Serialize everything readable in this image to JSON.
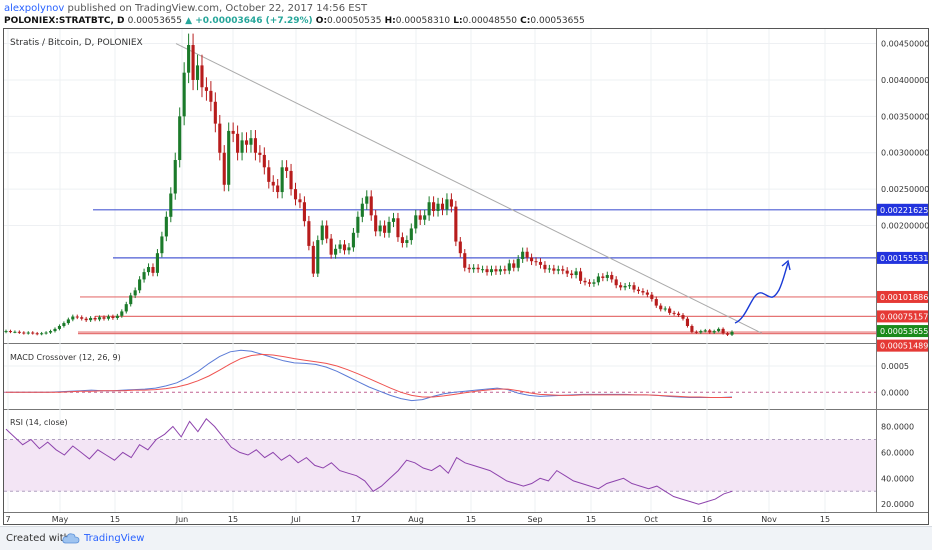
{
  "header": {
    "author": "alexpolynov",
    "published": "published on TradingView.com, October 22, 2017 14:56 EST",
    "symbol": "POLONIEX:STRATBTC, D",
    "last": "0.00053655",
    "change": "▲ +0.00003646 (+7.29%)",
    "o_label": "O:",
    "o": "0.00050535",
    "h_label": "H:",
    "h": "0.00058310",
    "l_label": "L:",
    "l": "0.00048550",
    "c_label": "C:",
    "c": "0.00053655"
  },
  "footer": {
    "created": "Created with",
    "brand": "TradingView"
  },
  "colors": {
    "up": "#26a69a",
    "down": "#ef5350",
    "candle_up": "#1b7a2a",
    "candle_down": "#b71c1c",
    "blue_level": "#4c5bd4",
    "red_level": "#e57373",
    "macd": "#5b7bd6",
    "signal": "#ef5350",
    "rsi": "#8e44ad",
    "rsi_band": "#f3e5f5",
    "trend": "#aaaaaa",
    "projection": "#1a3bd6"
  },
  "chart_data": [
    {
      "type": "candlestick",
      "title": "Stratis / Bitcoin, D, POLONIEX",
      "x_ticks": [
        "7",
        "May",
        "15",
        "Jun",
        "15",
        "Jul",
        "17",
        "Aug",
        "15",
        "Sep",
        "15",
        "Oct",
        "16",
        "Nov",
        "15"
      ],
      "y_ticks": [
        "0.00450000",
        "0.00400000",
        "0.00350000",
        "0.00300000",
        "0.00250000",
        "0.00200000"
      ],
      "ylim": [
        0.0004,
        0.0047
      ],
      "close": [
        0.00055,
        0.00054,
        0.00054,
        0.00053,
        0.00052,
        0.00053,
        0.00052,
        0.00051,
        0.00052,
        0.00053,
        0.00055,
        0.00058,
        0.00062,
        0.00066,
        0.00071,
        0.00075,
        0.00074,
        0.00072,
        0.0007,
        0.00073,
        0.00071,
        0.00074,
        0.00072,
        0.00075,
        0.00073,
        0.00076,
        0.00082,
        0.00092,
        0.00104,
        0.00111,
        0.00126,
        0.00136,
        0.00143,
        0.00135,
        0.00162,
        0.00185,
        0.00212,
        0.00244,
        0.0029,
        0.0035,
        0.0041,
        0.00448,
        0.004,
        0.0042,
        0.0039,
        0.00385,
        0.0037,
        0.0034,
        0.003,
        0.00256,
        0.0033,
        0.00326,
        0.003,
        0.00317,
        0.00311,
        0.0032,
        0.003,
        0.00297,
        0.0028,
        0.0026,
        0.00255,
        0.00246,
        0.0028,
        0.00275,
        0.0025,
        0.00236,
        0.00232,
        0.00206,
        0.00172,
        0.00134,
        0.0018,
        0.002,
        0.00182,
        0.0016,
        0.00168,
        0.00174,
        0.00166,
        0.0017,
        0.0019,
        0.00212,
        0.0023,
        0.0024,
        0.00214,
        0.00192,
        0.002,
        0.0019,
        0.00205,
        0.0021,
        0.00184,
        0.00176,
        0.0018,
        0.00196,
        0.00214,
        0.00208,
        0.00214,
        0.00232,
        0.0022,
        0.0023,
        0.00222,
        0.00236,
        0.00226,
        0.00178,
        0.00162,
        0.00142,
        0.0014,
        0.00142,
        0.0014,
        0.0014,
        0.00136,
        0.0014,
        0.00137,
        0.0014,
        0.00138,
        0.00148,
        0.00142,
        0.00154,
        0.00164,
        0.00156,
        0.00151,
        0.0015,
        0.00146,
        0.0014,
        0.00141,
        0.00138,
        0.0014,
        0.00138,
        0.00134,
        0.00132,
        0.00137,
        0.00124,
        0.00122,
        0.0012,
        0.00122,
        0.0013,
        0.00128,
        0.00132,
        0.00126,
        0.00118,
        0.00115,
        0.00117,
        0.00118,
        0.00112,
        0.0011,
        0.00108,
        0.00105,
        0.00099,
        0.0009,
        0.00085,
        0.00086,
        0.0008,
        0.00079,
        0.00077,
        0.00072,
        0.00062,
        0.00054,
        0.00053,
        0.00055,
        0.00056,
        0.00053,
        0.00055,
        0.00058,
        0.00052,
        0.0005,
        0.00054
      ],
      "levels": [
        {
          "value": 0.00221625,
          "label": "0.00221625",
          "color": "blue"
        },
        {
          "value": 0.00155531,
          "label": "0.00155531",
          "color": "blue"
        },
        {
          "value": 0.00101886,
          "label": "0.00101886",
          "color": "red"
        },
        {
          "value": 0.00075157,
          "label": "0.00075157",
          "color": "red"
        },
        {
          "value": 0.00053655,
          "label": "0.00053655",
          "color": "green"
        },
        {
          "value": 0.00051489,
          "label": "0.00051489",
          "color": "red"
        }
      ]
    },
    {
      "type": "line",
      "title": "MACD Crossover (12, 26, 9)",
      "y_ticks": [
        "0.0005",
        "0.0000"
      ],
      "ylim": [
        -0.0003,
        0.0009
      ],
      "series": [
        {
          "values": [
            0,
            0,
            0,
            0,
            0,
            1e-05,
            2e-05,
            3e-05,
            4e-05,
            3e-05,
            3e-05,
            4e-05,
            5e-05,
            6e-05,
            8e-05,
            0.00012,
            0.00018,
            0.00028,
            0.0004,
            0.00055,
            0.00068,
            0.00077,
            0.0008,
            0.00078,
            0.00072,
            0.00066,
            0.0006,
            0.00056,
            0.00055,
            0.00053,
            0.00048,
            0.0004,
            0.0003,
            0.0002,
            0.0001,
            2e-05,
            -6e-05,
            -0.00012,
            -0.00016,
            -0.00014,
            -8e-05,
            -3e-05,
            0.0,
            2e-05,
            4e-05,
            6e-05,
            8e-05,
            5e-05,
            -2e-05,
            -6e-05,
            -8e-05,
            -7e-05,
            -6e-05,
            -5e-05,
            -4e-05,
            -4e-05,
            -4e-05,
            -4e-05,
            -4e-05,
            -5e-05,
            -5e-05,
            -6e-05,
            -8e-05,
            -9e-05,
            -0.0001,
            -0.0001,
            -0.0001,
            -0.0001,
            -9e-05
          ]
        },
        {
          "values": [
            0,
            0,
            0,
            0,
            0,
            0,
            1e-05,
            2e-05,
            2e-05,
            3e-05,
            3e-05,
            3e-05,
            4e-05,
            4e-05,
            5e-05,
            7e-05,
            0.0001,
            0.00015,
            0.00022,
            0.00031,
            0.00042,
            0.00054,
            0.00064,
            0.0007,
            0.00072,
            0.00071,
            0.00068,
            0.00064,
            0.00061,
            0.00058,
            0.00055,
            0.0005,
            0.00043,
            0.00035,
            0.00026,
            0.00017,
            8e-05,
            0.0,
            -6e-05,
            -9e-05,
            -9e-05,
            -7e-05,
            -4e-05,
            -1e-05,
            2e-05,
            4e-05,
            6e-05,
            6e-05,
            3e-05,
            -1e-05,
            -4e-05,
            -5e-05,
            -6e-05,
            -6e-05,
            -5e-05,
            -5e-05,
            -5e-05,
            -5e-05,
            -5e-05,
            -5e-05,
            -5e-05,
            -6e-05,
            -7e-05,
            -8e-05,
            -9e-05,
            -9e-05,
            -0.0001,
            -0.0001,
            -0.0001
          ]
        }
      ]
    },
    {
      "type": "line",
      "title": "RSI (14, close)",
      "y_ticks": [
        "80.0000",
        "60.0000",
        "40.0000",
        "20.0000"
      ],
      "ylim": [
        14,
        92
      ],
      "band": [
        30,
        70
      ],
      "series": [
        {
          "values": [
            78,
            72,
            66,
            70,
            63,
            68,
            62,
            58,
            65,
            60,
            55,
            62,
            58,
            54,
            60,
            56,
            66,
            62,
            70,
            74,
            80,
            72,
            84,
            76,
            86,
            80,
            72,
            64,
            60,
            58,
            62,
            56,
            60,
            54,
            58,
            52,
            56,
            50,
            48,
            52,
            46,
            44,
            42,
            38,
            30,
            34,
            40,
            46,
            54,
            52,
            48,
            46,
            50,
            44,
            56,
            52,
            50,
            48,
            46,
            42,
            38,
            36,
            34,
            36,
            40,
            38,
            46,
            42,
            38,
            36,
            34,
            32,
            36,
            38,
            40,
            36,
            34,
            32,
            34,
            30,
            26,
            24,
            22,
            20,
            22,
            24,
            28,
            30
          ]
        }
      ]
    }
  ]
}
